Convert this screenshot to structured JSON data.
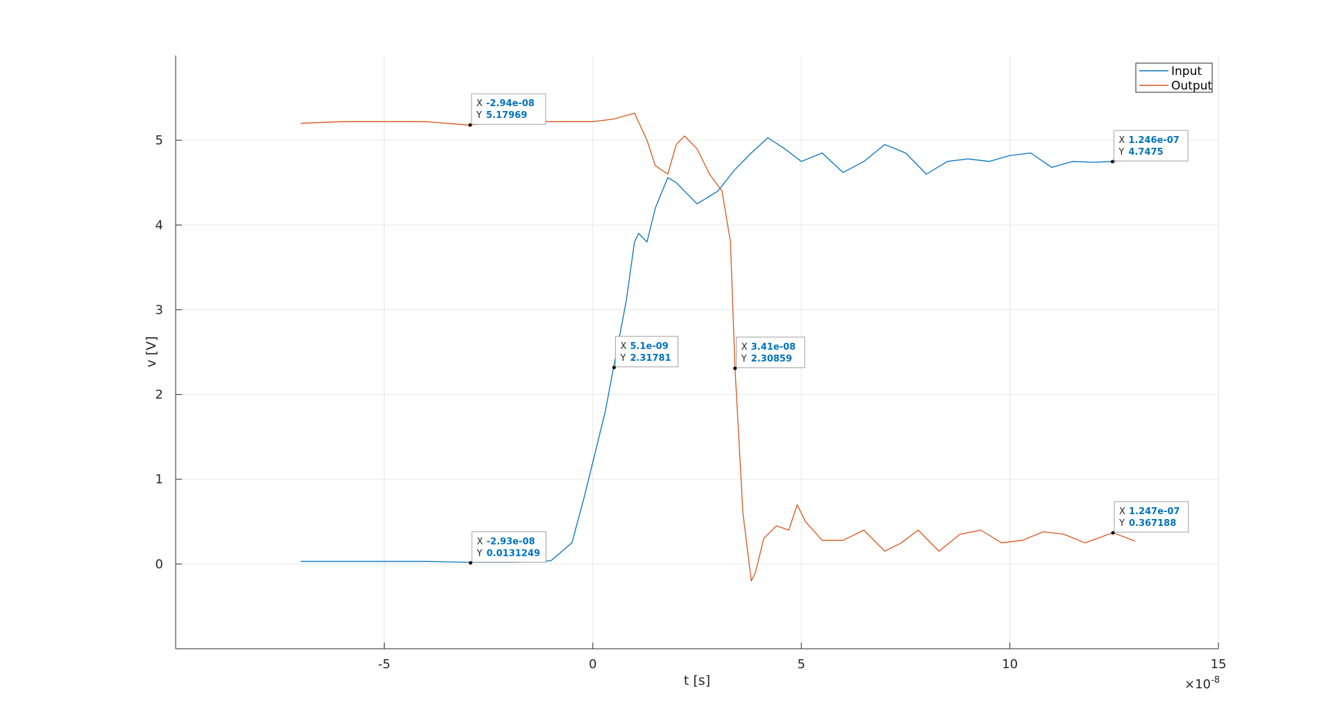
{
  "chart_data": {
    "type": "line",
    "xlabel": "t [s]",
    "ylabel": "v [V]",
    "x_exponent_label": "×10",
    "x_exponent_power": "-8",
    "xlim": [
      -10,
      15
    ],
    "ylim": [
      -1,
      6
    ],
    "x_unit_scale": 1e-08,
    "xticks": [
      -5,
      0,
      5,
      10,
      15
    ],
    "xtick_labels": [
      "-5",
      "0",
      "5",
      "10",
      "15"
    ],
    "yticks": [
      0,
      1,
      2,
      3,
      4,
      5
    ],
    "ytick_labels": [
      "0",
      "1",
      "2",
      "3",
      "4",
      "5"
    ],
    "grid": true,
    "legend_position": "top-right",
    "series": [
      {
        "name": "Input",
        "color": "#0072bd",
        "x": [
          -7,
          -6,
          -5,
          -4,
          -3,
          -2,
          -1.2,
          -1.0,
          -0.5,
          -0.2,
          0,
          0.3,
          0.5,
          0.8,
          1.0,
          1.1,
          1.3,
          1.5,
          1.8,
          2.0,
          2.5,
          3.0,
          3.4,
          3.8,
          4.2,
          4.6,
          5.0,
          5.5,
          6.0,
          6.5,
          7.0,
          7.5,
          8.0,
          8.5,
          9.0,
          9.5,
          10.0,
          10.5,
          11.0,
          11.5,
          12.0,
          12.46,
          13.0
        ],
        "y": [
          0.03,
          0.03,
          0.03,
          0.03,
          0.02,
          0.02,
          0.03,
          0.04,
          0.25,
          0.8,
          1.2,
          1.8,
          2.32,
          3.1,
          3.8,
          3.9,
          3.8,
          4.2,
          4.56,
          4.5,
          4.25,
          4.4,
          4.65,
          4.85,
          5.03,
          4.9,
          4.75,
          4.85,
          4.62,
          4.75,
          4.95,
          4.85,
          4.6,
          4.75,
          4.78,
          4.75,
          4.82,
          4.85,
          4.68,
          4.75,
          4.74,
          4.75,
          4.78
        ]
      },
      {
        "name": "Output",
        "color": "#d95319",
        "x": [
          -7,
          -6,
          -5,
          -4,
          -3,
          -2,
          -1,
          0,
          0.5,
          1.0,
          1.3,
          1.5,
          1.8,
          2.0,
          2.2,
          2.5,
          2.8,
          3.1,
          3.2,
          3.3,
          3.41,
          3.6,
          3.8,
          3.9,
          4.1,
          4.4,
          4.7,
          4.9,
          5.1,
          5.5,
          6.0,
          6.5,
          7.0,
          7.4,
          7.8,
          8.3,
          8.8,
          9.3,
          9.8,
          10.3,
          10.8,
          11.3,
          11.8,
          12.2,
          12.47,
          13.0
        ],
        "y": [
          5.2,
          5.22,
          5.22,
          5.22,
          5.18,
          5.22,
          5.22,
          5.22,
          5.25,
          5.32,
          5.0,
          4.7,
          4.6,
          4.95,
          5.05,
          4.9,
          4.6,
          4.4,
          4.1,
          3.8,
          2.31,
          0.6,
          -0.2,
          -0.1,
          0.3,
          0.45,
          0.4,
          0.7,
          0.5,
          0.28,
          0.28,
          0.4,
          0.15,
          0.25,
          0.4,
          0.15,
          0.35,
          0.4,
          0.25,
          0.28,
          0.38,
          0.35,
          0.25,
          0.32,
          0.37,
          0.27
        ]
      }
    ],
    "datatips": [
      {
        "series": "Output",
        "x": -2.94,
        "y": 5.17969,
        "x_text": "-2.94e-08",
        "y_text": "5.17969"
      },
      {
        "series": "Input",
        "x": -2.93,
        "y": 0.0131249,
        "x_text": "-2.93e-08",
        "y_text": "0.0131249"
      },
      {
        "series": "Input",
        "x": 0.51,
        "y": 2.31781,
        "x_text": "5.1e-09",
        "y_text": "2.31781"
      },
      {
        "series": "Output",
        "x": 3.41,
        "y": 2.30859,
        "x_text": "3.41e-08",
        "y_text": "2.30859"
      },
      {
        "series": "Input",
        "x": 12.46,
        "y": 4.7475,
        "x_text": "1.246e-07",
        "y_text": "4.7475"
      },
      {
        "series": "Output",
        "x": 12.47,
        "y": 0.367188,
        "x_text": "1.247e-07",
        "y_text": "0.367188"
      }
    ],
    "datatip_x_key": "X",
    "datatip_y_key": "Y"
  }
}
